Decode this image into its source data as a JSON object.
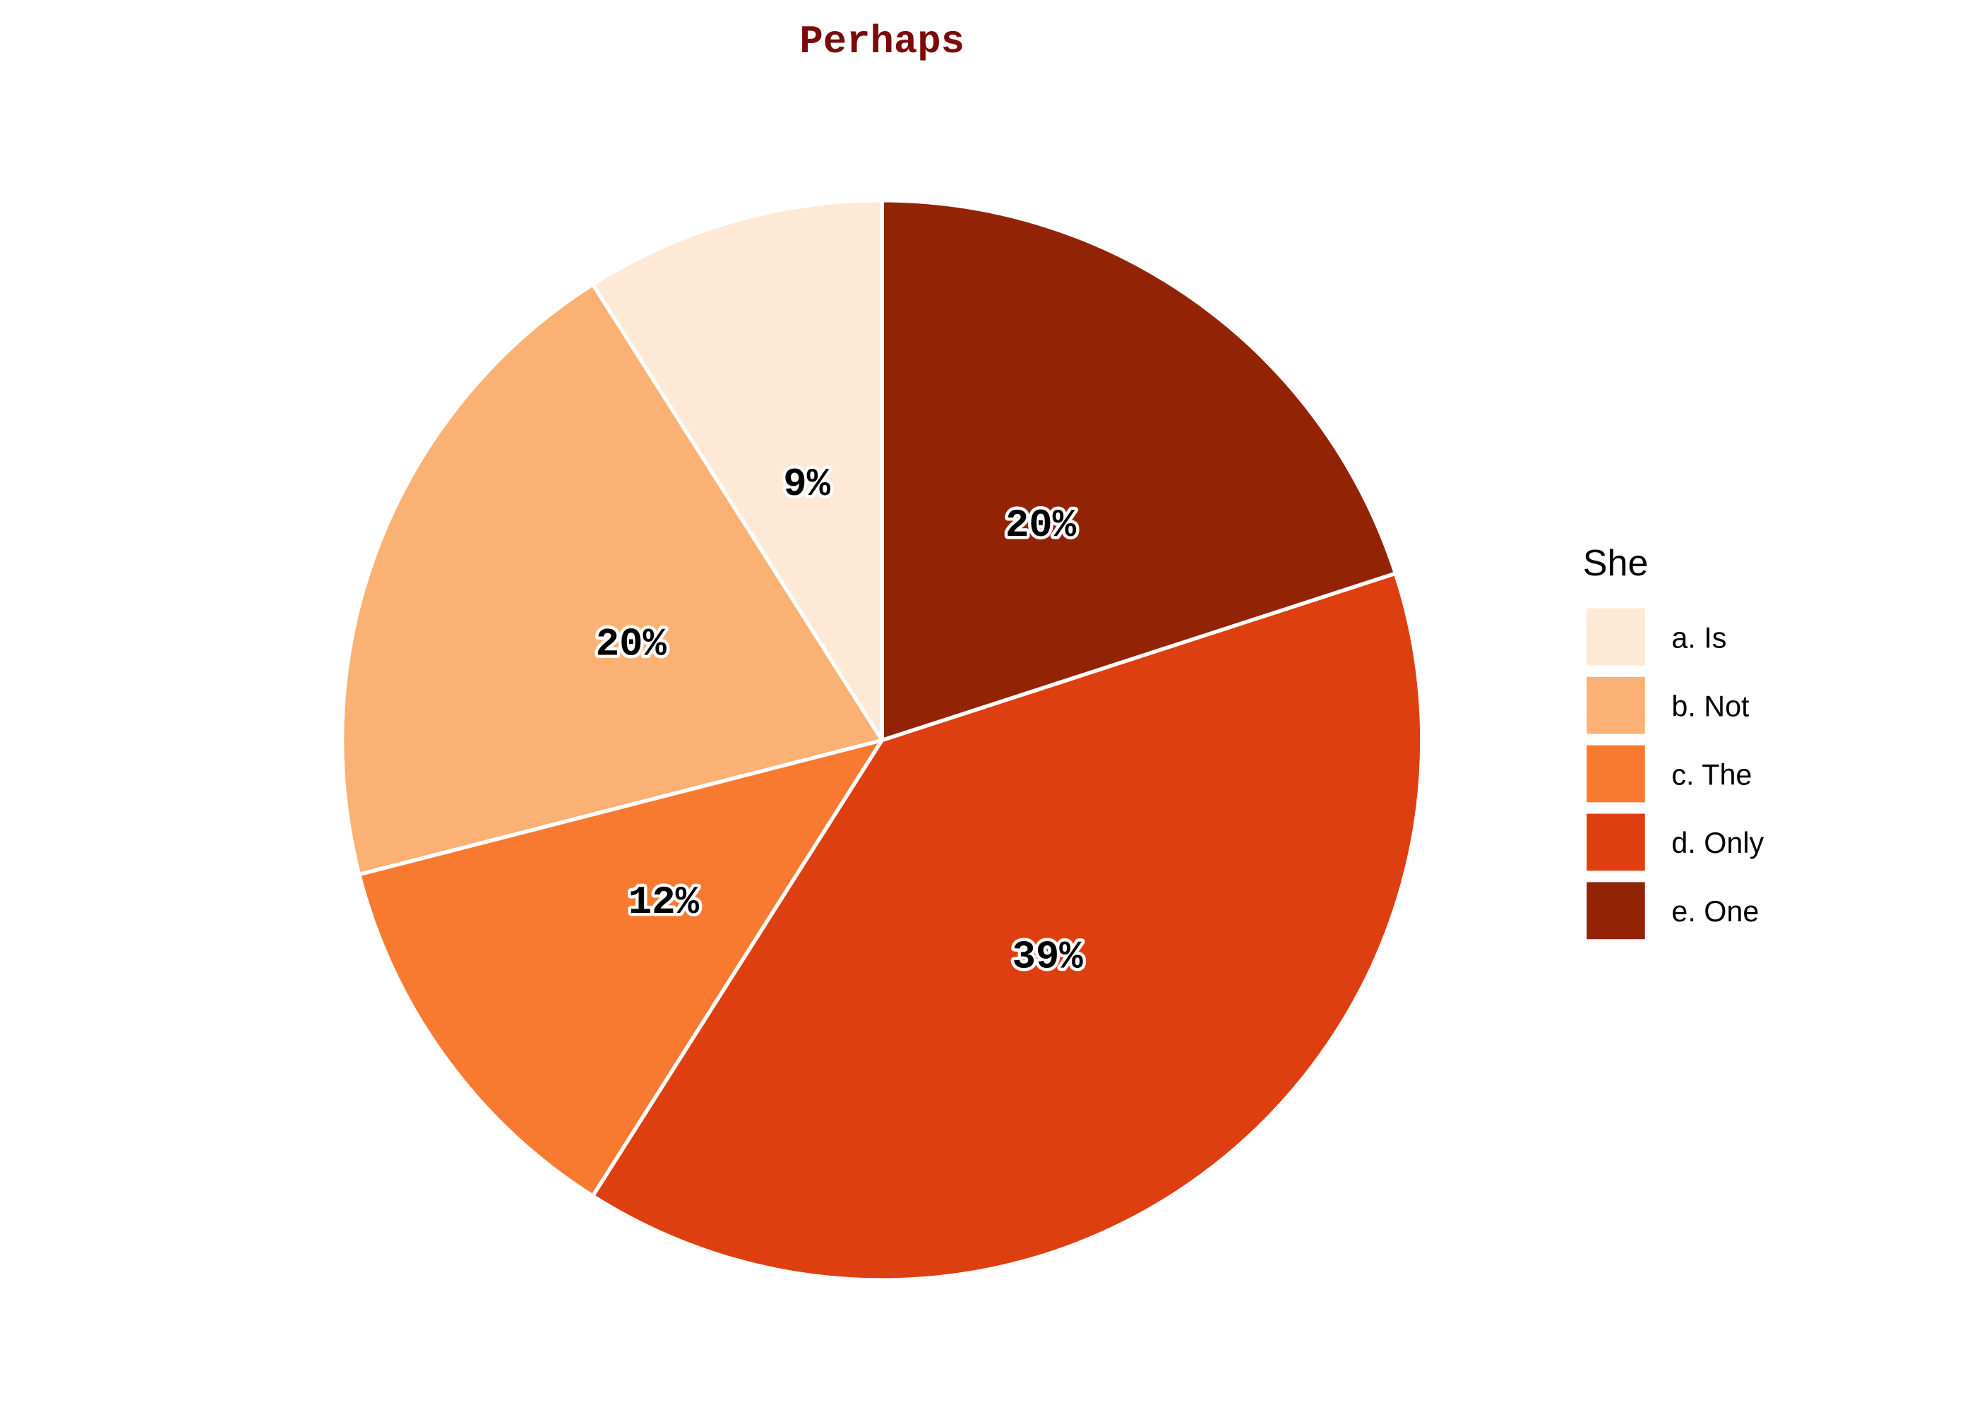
{
  "chart_data": {
    "type": "pie",
    "title": "Perhaps",
    "title_color": "#7b0a0a",
    "legend": {
      "title": "She",
      "placement": "right"
    },
    "start_angle_deg": 90,
    "direction": "counterclockwise",
    "slices": [
      {
        "label": "a. Is",
        "value": 9,
        "pct_label": "9%",
        "color": "#fee8d6"
      },
      {
        "label": "b. Not",
        "value": 20,
        "pct_label": "20%",
        "color": "#fbb173"
      },
      {
        "label": "c. The",
        "value": 12,
        "pct_label": "12%",
        "color": "#f87a31"
      },
      {
        "label": "d. Only",
        "value": 39,
        "pct_label": "39%",
        "color": "#de3f10"
      },
      {
        "label": "e. One",
        "value": 20,
        "pct_label": "20%",
        "color": "#922405"
      }
    ],
    "edge_color": "#ffffff"
  }
}
